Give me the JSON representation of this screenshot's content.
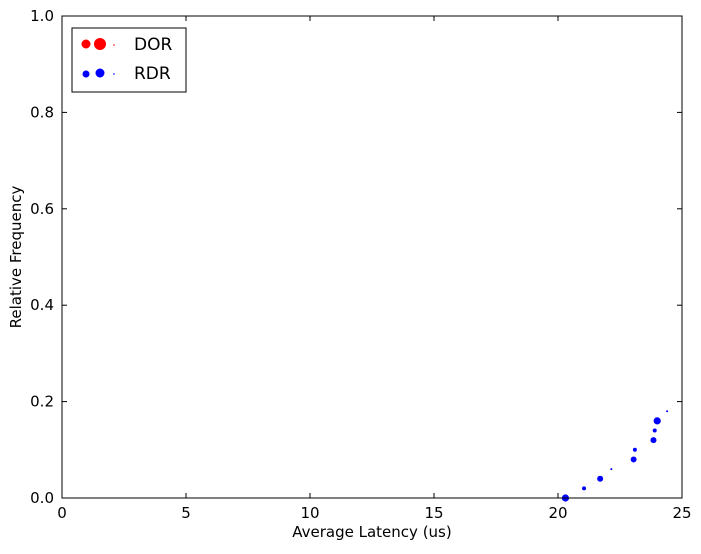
{
  "chart_data": {
    "type": "scatter",
    "title": "",
    "xlabel": "Average Latency (us)",
    "ylabel": "Relative Frequency",
    "xlim": [
      0,
      25
    ],
    "ylim": [
      0.0,
      1.0
    ],
    "xticks": [
      0,
      5,
      10,
      15,
      20,
      25
    ],
    "xtick_labels": [
      "0",
      "5",
      "10",
      "15",
      "20",
      "25"
    ],
    "yticks": [
      0.0,
      0.2,
      0.4,
      0.6,
      0.8,
      1.0
    ],
    "ytick_labels": [
      "0.0",
      "0.2",
      "0.4",
      "0.6",
      "0.8",
      "1.0"
    ],
    "grid": false,
    "legend_position": "top-left",
    "series": [
      {
        "name": "DOR",
        "color": "#ff0000",
        "points": []
      },
      {
        "name": "RDR",
        "color": "#0000ff",
        "points": [
          {
            "x": 20.3,
            "y": 0.0,
            "size": "large"
          },
          {
            "x": 21.05,
            "y": 0.02,
            "size": "small"
          },
          {
            "x": 21.7,
            "y": 0.04,
            "size": "medium"
          },
          {
            "x": 22.15,
            "y": 0.06,
            "size": "tiny"
          },
          {
            "x": 23.05,
            "y": 0.08,
            "size": "medium"
          },
          {
            "x": 23.1,
            "y": 0.1,
            "size": "small"
          },
          {
            "x": 23.85,
            "y": 0.12,
            "size": "medium"
          },
          {
            "x": 23.9,
            "y": 0.14,
            "size": "small"
          },
          {
            "x": 24.0,
            "y": 0.16,
            "size": "large"
          },
          {
            "x": 24.4,
            "y": 0.18,
            "size": "tiny"
          }
        ]
      }
    ]
  }
}
